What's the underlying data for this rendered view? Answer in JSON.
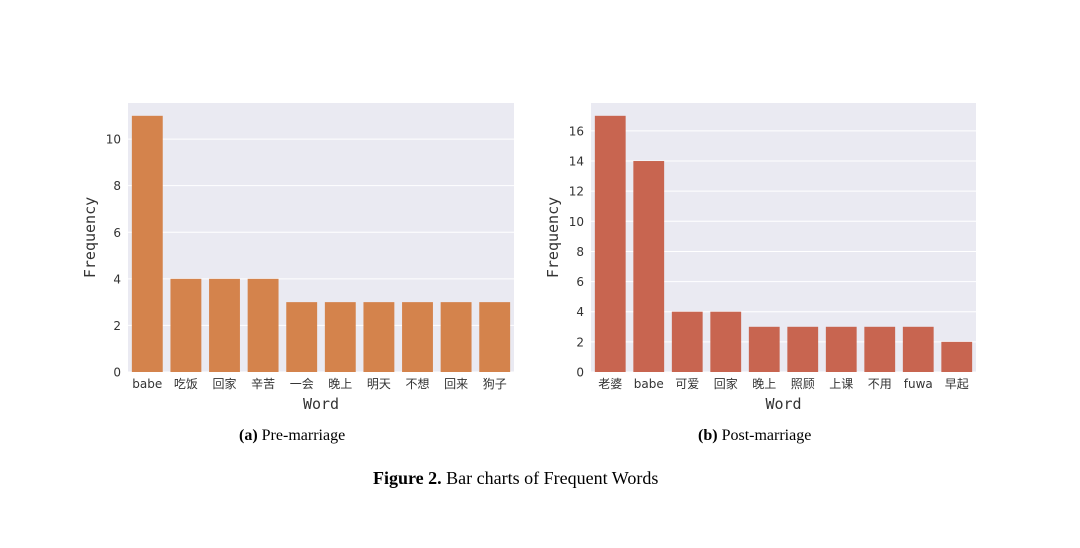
{
  "chart_data": [
    {
      "type": "bar",
      "id": "a",
      "title": "",
      "xlabel": "Word",
      "ylabel": "Frequency",
      "categories": [
        "babe",
        "吃饭",
        "回家",
        "辛苦",
        "一会",
        "晚上",
        "明天",
        "不想",
        "回来",
        "狗子"
      ],
      "values": [
        11,
        4,
        4,
        4,
        3,
        3,
        3,
        3,
        3,
        3
      ],
      "ylim": [
        0,
        11.55
      ],
      "yticks": [
        0,
        2,
        4,
        6,
        8,
        10
      ],
      "grid": true,
      "color": "#d4834c",
      "subcaption_label": "(a)",
      "subcaption_text": "Pre-marriage"
    },
    {
      "type": "bar",
      "id": "b",
      "title": "",
      "xlabel": "Word",
      "ylabel": "Frequency",
      "categories": [
        "老婆",
        "babe",
        "可爱",
        "回家",
        "晚上",
        "照顾",
        "上课",
        "不用",
        "fuwa",
        "早起"
      ],
      "values": [
        17,
        14,
        4,
        4,
        3,
        3,
        3,
        3,
        3,
        2
      ],
      "ylim": [
        0,
        17.85
      ],
      "yticks": [
        0,
        2,
        4,
        6,
        8,
        10,
        12,
        14,
        16
      ],
      "grid": true,
      "color": "#c86550",
      "subcaption_label": "(b)",
      "subcaption_text": "Post-marriage"
    }
  ],
  "figure": {
    "label": "Figure 2.",
    "caption": "Bar charts of Frequent Words"
  },
  "colors": {
    "plot_bg": "#eaeaf2",
    "grid": "#ffffff",
    "tick_text": "#333333"
  }
}
